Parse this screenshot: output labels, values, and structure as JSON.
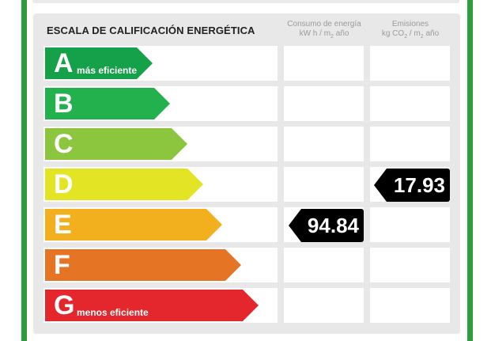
{
  "title": "ESCALA DE CALIFICACIÓN ENERGÉTICA",
  "columns": {
    "consumo": {
      "line1": "Consumo de energía",
      "line2_pre": "kW h / m",
      "line2_sub": "2",
      "line2_post": " año"
    },
    "emisiones": {
      "line1": "Emisiones",
      "line2_pre": "kg CO",
      "line2_sub": "2",
      "line2_mid": " / m",
      "line2_sub2": "2",
      "line2_post": " año"
    }
  },
  "ratings": [
    {
      "letter": "A",
      "sub": "más eficiente",
      "color": "#15a04a"
    },
    {
      "letter": "B",
      "sub": "",
      "color": "#22b14c"
    },
    {
      "letter": "C",
      "sub": "",
      "color": "#8cc63f"
    },
    {
      "letter": "D",
      "sub": "",
      "color": "#e3e524"
    },
    {
      "letter": "E",
      "sub": "",
      "color": "#f2b01e"
    },
    {
      "letter": "F",
      "sub": "",
      "color": "#e57525"
    },
    {
      "letter": "G",
      "sub": "menos eficiente",
      "color": "#e3272c"
    }
  ],
  "consumo": {
    "rating": "E",
    "value": "94.84"
  },
  "emisiones": {
    "rating": "D",
    "value": "17.93"
  }
}
